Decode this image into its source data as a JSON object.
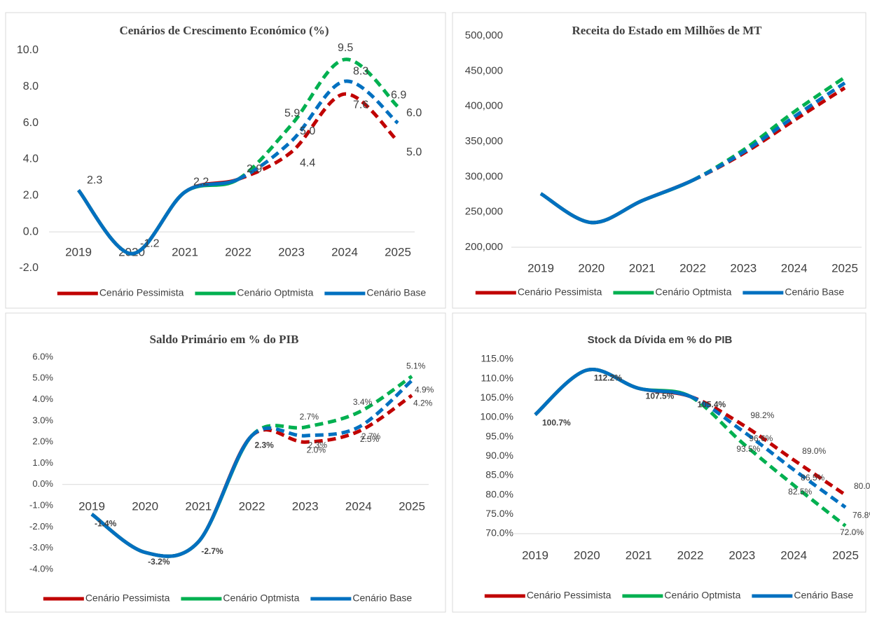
{
  "chart_data": [
    {
      "type": "line",
      "title": "Cenários de Crescimento Económico (%)",
      "categories": [
        "2019",
        "2020",
        "2021",
        "2022",
        "2023",
        "2024",
        "2025"
      ],
      "ylim": [
        -2,
        10
      ],
      "yticks": [
        {
          "value": -2,
          "label": "-2.0"
        },
        {
          "value": 0,
          "label": "0.0"
        },
        {
          "value": 2,
          "label": "2.0"
        },
        {
          "value": 4,
          "label": "4.0"
        },
        {
          "value": 6,
          "label": "6.0"
        },
        {
          "value": 8,
          "label": "8.0"
        },
        {
          "value": 10,
          "label": "10.0"
        }
      ],
      "dash_from": "2022",
      "series": [
        {
          "name": "Cenário Pessimista",
          "color": "#c00000",
          "values": [
            2.3,
            -1.2,
            2.2,
            2.9,
            4.4,
            7.6,
            5.0
          ],
          "value_labels": [
            null,
            null,
            null,
            null,
            "4.4",
            "7.6",
            "5.0"
          ]
        },
        {
          "name": "Cenário Optmista",
          "color": "#00b050",
          "values": [
            2.3,
            -1.2,
            2.2,
            2.9,
            5.9,
            9.5,
            6.9
          ],
          "value_labels": [
            null,
            null,
            null,
            null,
            "5.9",
            "9.5",
            "6.9"
          ]
        },
        {
          "name": "Cenário Base",
          "color": "#0070c0",
          "values": [
            2.3,
            -1.2,
            2.2,
            2.9,
            5.0,
            8.3,
            6.0
          ],
          "value_labels": [
            "2.3",
            "-1.2",
            "2.2",
            "2.9",
            "5.0",
            "8.3",
            "6.0"
          ]
        }
      ]
    },
    {
      "type": "line",
      "title": "Receita do Estado  em Milhões de MT",
      "categories": [
        "2019",
        "2020",
        "2021",
        "2022",
        "2023",
        "2024",
        "2025"
      ],
      "ylim": [
        200000,
        500000
      ],
      "yticks": [
        {
          "value": 200000,
          "label": "200,000"
        },
        {
          "value": 250000,
          "label": "250,000"
        },
        {
          "value": 300000,
          "label": "300,000"
        },
        {
          "value": 350000,
          "label": "350,000"
        },
        {
          "value": 400000,
          "label": "400,000"
        },
        {
          "value": 450000,
          "label": "450,000"
        },
        {
          "value": 500000,
          "label": "500,000"
        }
      ],
      "dash_from": "2022",
      "series": [
        {
          "name": "Cenário Pessimista",
          "color": "#c00000",
          "values": [
            276000,
            235000,
            266000,
            295000,
            333000,
            380000,
            426000
          ]
        },
        {
          "name": "Cenário Optmista",
          "color": "#00b050",
          "values": [
            276000,
            235000,
            266000,
            295000,
            338000,
            392000,
            441000
          ]
        },
        {
          "name": "Cenário Base",
          "color": "#0070c0",
          "values": [
            276000,
            235000,
            266000,
            295000,
            335000,
            385000,
            433000
          ]
        }
      ]
    },
    {
      "type": "line",
      "title": "Saldo Primário em % do PIB",
      "categories": [
        "2019",
        "2020",
        "2021",
        "2022",
        "2023",
        "2024",
        "2025"
      ],
      "ylim": [
        -4,
        6
      ],
      "yticks": [
        {
          "value": -4,
          "label": "-4.0%"
        },
        {
          "value": -3,
          "label": "-3.0%"
        },
        {
          "value": -2,
          "label": "-2.0%"
        },
        {
          "value": -1,
          "label": "-1.0%"
        },
        {
          "value": 0,
          "label": "0.0%"
        },
        {
          "value": 1,
          "label": "1.0%"
        },
        {
          "value": 2,
          "label": "2.0%"
        },
        {
          "value": 3,
          "label": "3.0%"
        },
        {
          "value": 4,
          "label": "4.0%"
        },
        {
          "value": 5,
          "label": "5.0%"
        },
        {
          "value": 6,
          "label": "6.0%"
        }
      ],
      "dash_from": "2022",
      "series": [
        {
          "name": "Cenário Pessimista",
          "color": "#c00000",
          "values": [
            -1.4,
            -3.2,
            -2.7,
            2.3,
            2.0,
            2.5,
            4.2
          ],
          "value_labels": [
            null,
            null,
            null,
            null,
            "2.0%",
            "2.5%",
            "4.2%"
          ]
        },
        {
          "name": "Cenário Optmista",
          "color": "#00b050",
          "values": [
            -1.4,
            -3.2,
            -2.7,
            2.3,
            2.7,
            3.4,
            5.1
          ],
          "value_labels": [
            null,
            null,
            null,
            null,
            "2.7%",
            "3.4%",
            "5.1%"
          ]
        },
        {
          "name": "Cenário Base",
          "color": "#0070c0",
          "values": [
            -1.4,
            -3.2,
            -2.7,
            2.3,
            2.3,
            2.7,
            4.9
          ],
          "value_labels": [
            "-1.4%",
            "-3.2%",
            "-2.7%",
            "2.3%",
            "2.3%",
            "2.7%",
            "4.9%"
          ]
        }
      ]
    },
    {
      "type": "line",
      "title": "Stock da Dívida em  % do PIB",
      "categories": [
        "2019",
        "2020",
        "2021",
        "2022",
        "2023",
        "2024",
        "2025"
      ],
      "ylim": [
        70,
        115
      ],
      "yticks": [
        {
          "value": 70,
          "label": "70.0%"
        },
        {
          "value": 75,
          "label": "75.0%"
        },
        {
          "value": 80,
          "label": "80.0%"
        },
        {
          "value": 85,
          "label": "85.0%"
        },
        {
          "value": 90,
          "label": "90.0%"
        },
        {
          "value": 95,
          "label": "95.0%"
        },
        {
          "value": 100,
          "label": "100.0%"
        },
        {
          "value": 105,
          "label": "105.0%"
        },
        {
          "value": 110,
          "label": "110.0%"
        },
        {
          "value": 115,
          "label": "115.0%"
        }
      ],
      "dash_from": "2022",
      "series": [
        {
          "name": "Cenário Pessimista",
          "color": "#c00000",
          "values": [
            100.7,
            112.2,
            107.5,
            105.4,
            98.2,
            89.0,
            80.0
          ],
          "value_labels": [
            null,
            null,
            null,
            null,
            "98.2%",
            "89.0%",
            "80.0%"
          ]
        },
        {
          "name": "Cenário Optmista",
          "color": "#00b050",
          "values": [
            100.7,
            112.2,
            107.5,
            105.4,
            93.5,
            82.5,
            72.0
          ],
          "value_labels": [
            null,
            null,
            null,
            null,
            "93.5%",
            "82.5%",
            "72.0%"
          ]
        },
        {
          "name": "Cenário Base",
          "color": "#0070c0",
          "values": [
            100.7,
            112.2,
            107.5,
            105.4,
            96.6,
            86.5,
            76.8
          ],
          "value_labels": [
            "100.7%",
            "112.2%",
            "107.5%",
            "105.4%",
            "96.6%",
            "86.5%",
            "76.8%"
          ]
        }
      ]
    }
  ]
}
